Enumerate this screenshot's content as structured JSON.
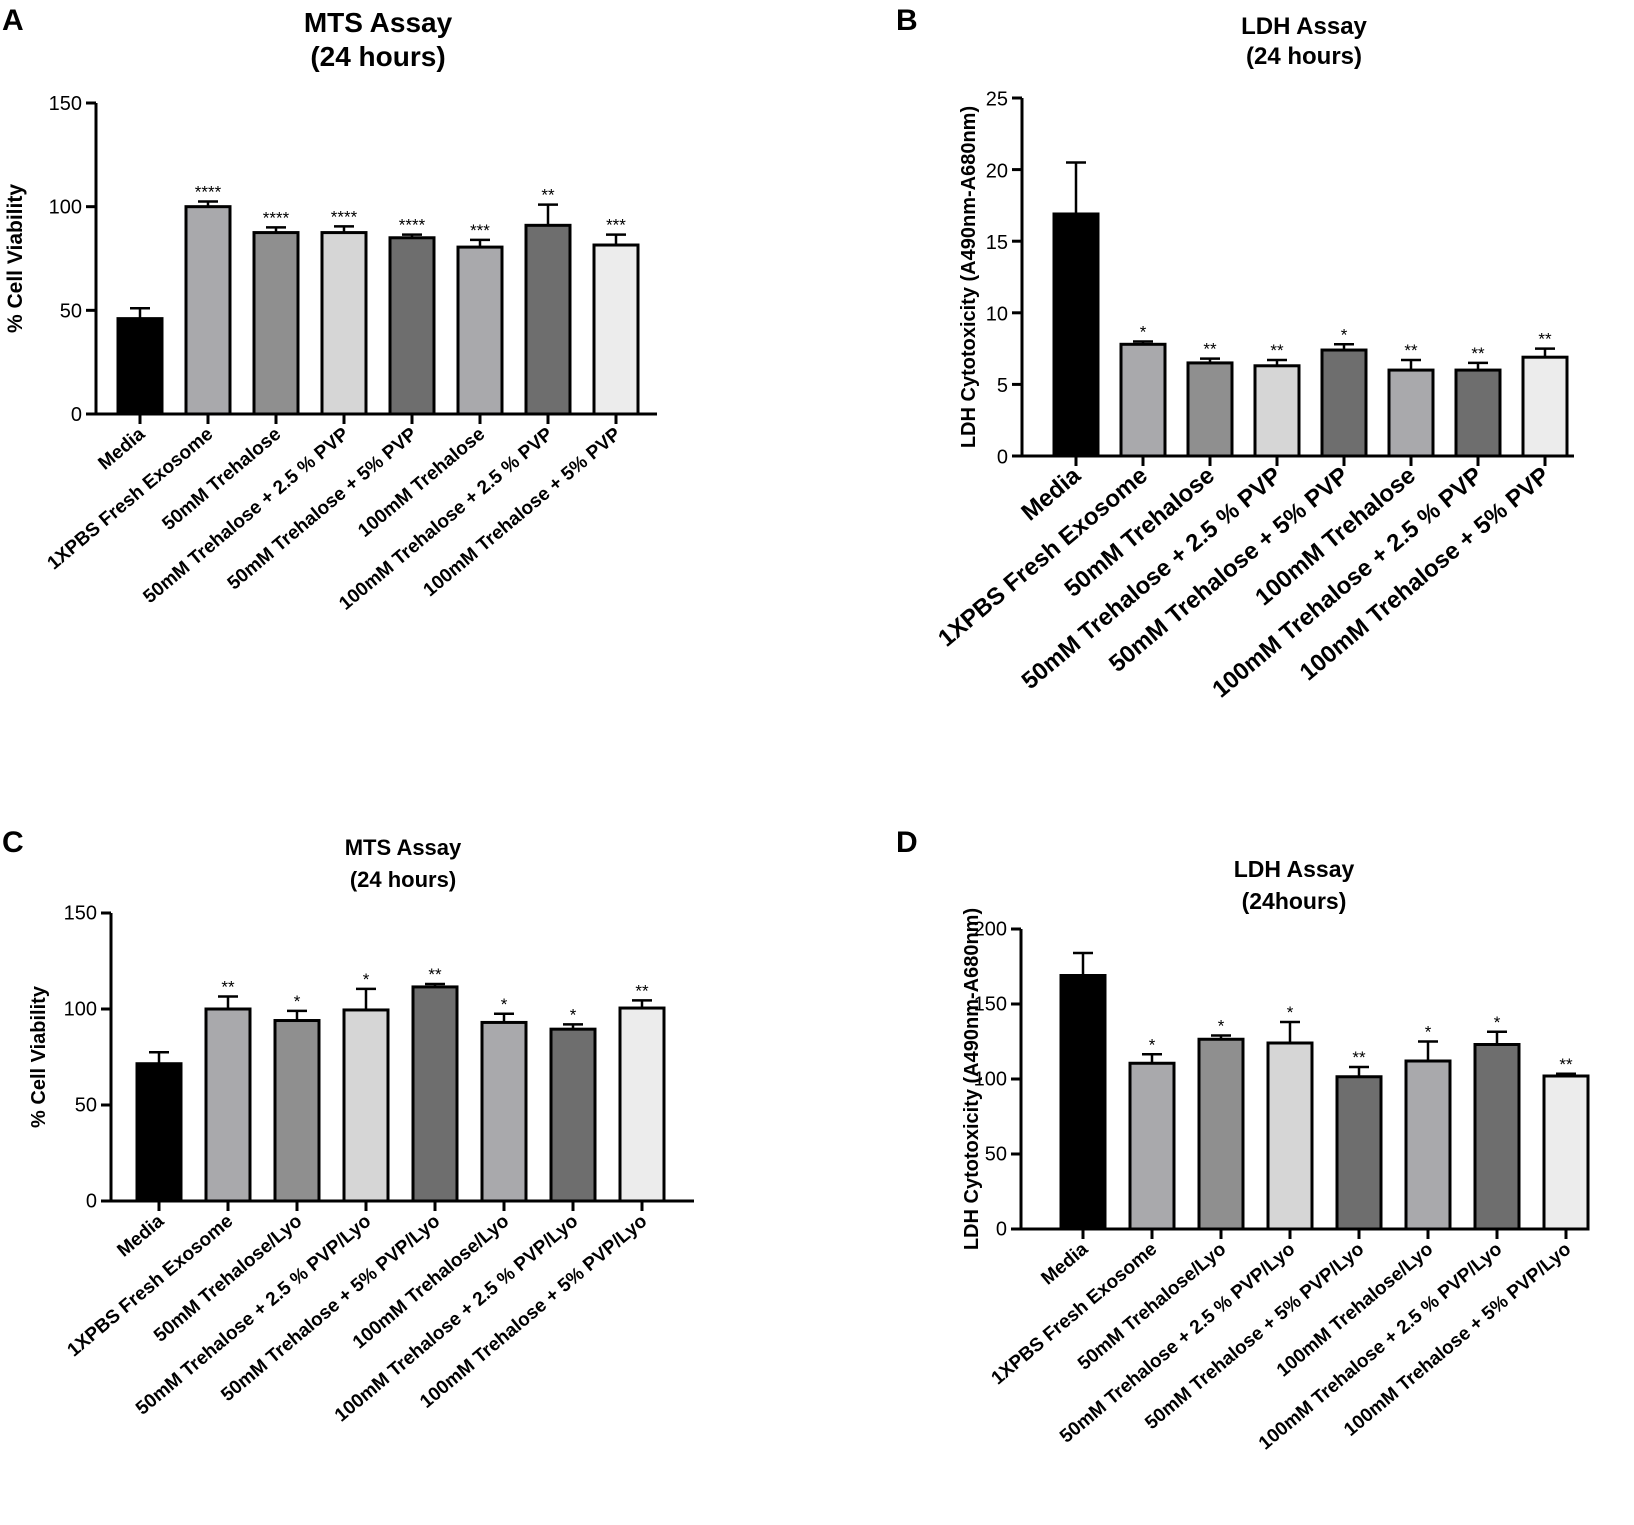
{
  "chart_data": [
    {
      "panel": "A",
      "type": "bar",
      "title": "MTS Assay",
      "subtitle": "(24 hours)",
      "xlabel": "",
      "ylabel": "% Cell Viability",
      "ylim": [
        0,
        150
      ],
      "yticks": [
        "0",
        "50",
        "100",
        "150"
      ],
      "categories": [
        "Media",
        "1XPBS Fresh Exosome",
        "50mM Trehalose",
        "50mM Trehalose + 2.5 % PVP",
        "50mM Trehalose + 5% PVP",
        "100mM Trehalose",
        "100mM Trehalose + 2.5 % PVP",
        "100mM Trehalose + 5% PVP"
      ],
      "values": [
        46,
        100,
        87.5,
        87.5,
        85,
        80.5,
        91,
        81.5
      ],
      "errors": [
        5,
        2.5,
        2.5,
        3,
        1.5,
        3.5,
        10,
        5
      ],
      "significance": [
        "",
        "****",
        "****",
        "****",
        "****",
        "***",
        "**",
        "***"
      ],
      "colors": [
        "#000000",
        "#a9a9ac",
        "#8f8f8f",
        "#d6d6d6",
        "#6e6e6e",
        "#a9a9ac",
        "#6e6e6e",
        "#ececec"
      ]
    },
    {
      "panel": "B",
      "type": "bar",
      "title": "LDH Assay",
      "subtitle": "(24 hours)",
      "xlabel": "",
      "ylabel": "LDH Cytotoxicity (A490nm-A680nm)",
      "ylim": [
        0,
        25
      ],
      "yticks": [
        "0",
        "5",
        "10",
        "15",
        "20",
        "25"
      ],
      "categories": [
        "Media",
        "1XPBS Fresh Exosome",
        "50mM Trehalose",
        "50mM Trehalose + 2.5 % PVP",
        "50mM Trehalose + 5% PVP",
        "100mM Trehalose",
        "100mM Trehalose + 2.5 % PVP",
        "100mM Trehalose + 5% PVP"
      ],
      "values": [
        16.9,
        7.8,
        6.5,
        6.3,
        7.4,
        6.0,
        6.0,
        6.9
      ],
      "errors": [
        3.6,
        0.2,
        0.3,
        0.4,
        0.4,
        0.7,
        0.5,
        0.6
      ],
      "significance": [
        "",
        "*",
        "**",
        "**",
        "*",
        "**",
        "**",
        "**"
      ],
      "colors": [
        "#000000",
        "#a9a9ac",
        "#8f8f8f",
        "#d6d6d6",
        "#6e6e6e",
        "#a9a9ac",
        "#6e6e6e",
        "#ececec"
      ]
    },
    {
      "panel": "C",
      "type": "bar",
      "title": "MTS Assay",
      "subtitle": "(24 hours)",
      "xlabel": "",
      "ylabel": "% Cell Viability",
      "ylim": [
        0,
        150
      ],
      "yticks": [
        "0",
        "50",
        "100",
        "150"
      ],
      "categories": [
        "Media",
        "1XPBS Fresh Exosome",
        "50mM Trehalose/Lyo",
        "50mM Trehalose + 2.5 % PVP/Lyo",
        "50mM Trehalose + 5% PVP/Lyo",
        "100mM Trehalose/Lyo",
        "100mM Trehalose + 2.5 % PVP/Lyo",
        "100mM Trehalose + 5% PVP/Lyo"
      ],
      "values": [
        71.5,
        100,
        94,
        99.5,
        111.5,
        93,
        89.5,
        100.5
      ],
      "errors": [
        6,
        6.5,
        5,
        11,
        1.5,
        4.5,
        2.5,
        4
      ],
      "significance": [
        "",
        "**",
        "*",
        "*",
        "**",
        "*",
        "*",
        "**"
      ],
      "colors": [
        "#000000",
        "#a9a9ac",
        "#8f8f8f",
        "#d6d6d6",
        "#6e6e6e",
        "#a9a9ac",
        "#6e6e6e",
        "#ececec"
      ]
    },
    {
      "panel": "D",
      "type": "bar",
      "title": "LDH Assay",
      "subtitle": "(24hours)",
      "xlabel": "",
      "ylabel": "LDH Cytotoxicity (A490nm-A680nm)",
      "ylim": [
        0,
        200
      ],
      "yticks": [
        "0",
        "50",
        "100",
        "150",
        "200"
      ],
      "categories": [
        "Media",
        "1XPBS Fresh Exosome",
        "50mM Trehalose/Lyo",
        "50mM Trehalose + 2.5 % PVP/Lyo",
        "50mM Trehalose + 5% PVP/Lyo",
        "100mM Trehalose/Lyo",
        "100mM Trehalose + 2.5 % PVP/Lyo",
        "100mM Trehalose + 5% PVP/Lyo"
      ],
      "values": [
        169,
        110.5,
        126.5,
        124,
        101.5,
        112,
        123,
        102
      ],
      "errors": [
        15,
        6,
        2.5,
        14,
        6.5,
        13,
        8.5,
        1.5
      ],
      "significance": [
        "",
        "*",
        "*",
        "*",
        "**",
        "*",
        "*",
        "**"
      ],
      "colors": [
        "#000000",
        "#a9a9ac",
        "#8f8f8f",
        "#d6d6d6",
        "#6e6e6e",
        "#a9a9ac",
        "#6e6e6e",
        "#ececec"
      ]
    }
  ]
}
